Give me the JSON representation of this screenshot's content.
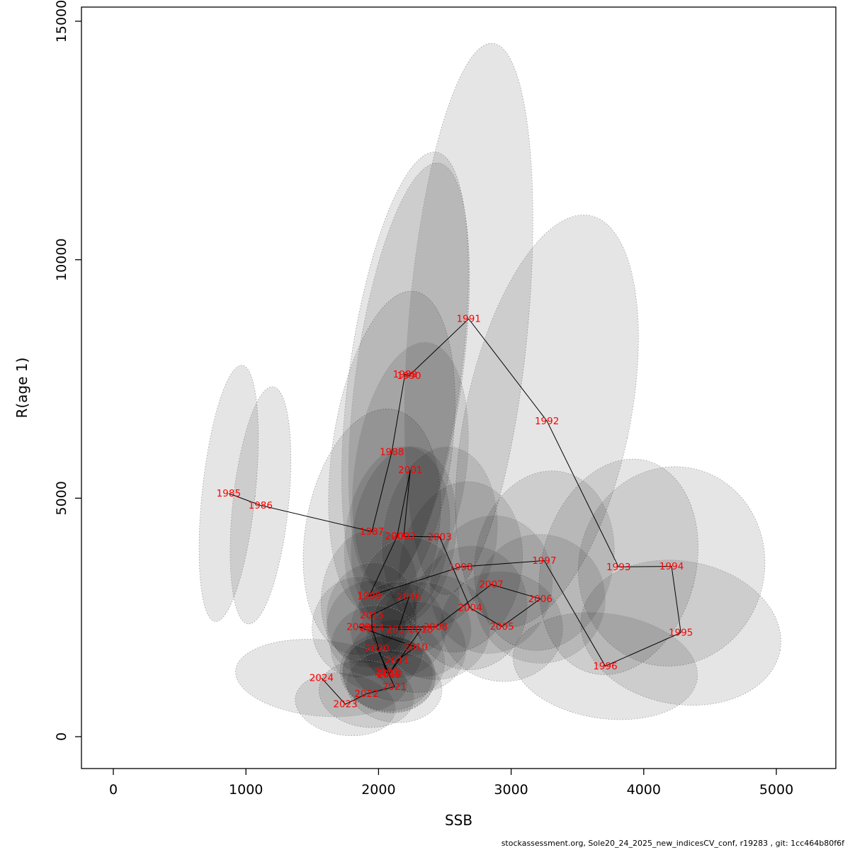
{
  "figure": {
    "background": "#FFFFFF"
  },
  "footer": {
    "text": "stockassessment.org, Sole20_24_2025_new_indicesCV_conf, r19283 , git: 1cc464b80f6f"
  },
  "chart_data": {
    "type": "scatter",
    "title": "",
    "xlabel": "SSB",
    "ylabel": "R(age 1)",
    "xlim": [
      0,
      5000
    ],
    "ylim": [
      0,
      15000
    ],
    "x_ticks": [
      0,
      1000,
      2000,
      3000,
      4000,
      5000
    ],
    "y_ticks": [
      0,
      5000,
      10000,
      15000
    ],
    "grid": false,
    "legend": false,
    "label_color": "#FF0000",
    "line_color": "#000000",
    "ellipse_fill": "#000000",
    "ellipse_fill_opacity": 0.1,
    "ellipse_stroke": "#909090",
    "series_description": "Stock-recruitment trajectory by year (red labels) joined by a line, each point surrounded by a grey confidence ellipse",
    "points": [
      {
        "year": 1985,
        "ssb": 870,
        "r": 5100,
        "ell_rx": 200,
        "ell_ry": 2700,
        "tilt": 6
      },
      {
        "year": 1986,
        "ssb": 1110,
        "r": 4850,
        "ell_rx": 210,
        "ell_ry": 2500,
        "tilt": 6
      },
      {
        "year": 1987,
        "ssb": 1950,
        "r": 4300,
        "ell_rx": 500,
        "ell_ry": 2600,
        "tilt": 10
      },
      {
        "year": 1988,
        "ssb": 2100,
        "r": 5970,
        "ell_rx": 450,
        "ell_ry": 3400,
        "tilt": 8
      },
      {
        "year": 1989,
        "ssb": 2200,
        "r": 7600,
        "ell_rx": 420,
        "ell_ry": 4700,
        "tilt": 8
      },
      {
        "year": 1990,
        "ssb": 2230,
        "r": 7570,
        "ell_rx": 400,
        "ell_ry": 4500,
        "tilt": 8
      },
      {
        "year": 1991,
        "ssb": 2680,
        "r": 8760,
        "ell_rx": 450,
        "ell_ry": 5800,
        "tilt": 5
      },
      {
        "year": 1992,
        "ssb": 3270,
        "r": 6620,
        "ell_rx": 620,
        "ell_ry": 4400,
        "tilt": 12
      },
      {
        "year": 1993,
        "ssb": 3810,
        "r": 3560,
        "ell_rx": 580,
        "ell_ry": 2300,
        "tilt": 15
      },
      {
        "year": 1994,
        "ssb": 4210,
        "r": 3570,
        "ell_rx": 700,
        "ell_ry": 2100,
        "tilt": 15
      },
      {
        "year": 1995,
        "ssb": 4280,
        "r": 2180,
        "ell_rx": 760,
        "ell_ry": 1500,
        "tilt": 10
      },
      {
        "year": 1996,
        "ssb": 3710,
        "r": 1480,
        "ell_rx": 700,
        "ell_ry": 1100,
        "tilt": 8
      },
      {
        "year": 1997,
        "ssb": 3250,
        "r": 3690,
        "ell_rx": 520,
        "ell_ry": 1900,
        "tilt": 12
      },
      {
        "year": 1998,
        "ssb": 2620,
        "r": 3560,
        "ell_rx": 460,
        "ell_ry": 1800,
        "tilt": 10
      },
      {
        "year": 1999,
        "ssb": 1930,
        "r": 2950,
        "ell_rx": 360,
        "ell_ry": 1400,
        "tilt": 8
      },
      {
        "year": 2000,
        "ssb": 2140,
        "r": 4200,
        "ell_rx": 390,
        "ell_ry": 1900,
        "tilt": 8
      },
      {
        "year": 2001,
        "ssb": 2240,
        "r": 5590,
        "ell_rx": 420,
        "ell_ry": 2700,
        "tilt": 8
      },
      {
        "year": 2002,
        "ssb": 2190,
        "r": 4200,
        "ell_rx": 390,
        "ell_ry": 1900,
        "tilt": 8
      },
      {
        "year": 2003,
        "ssb": 2460,
        "r": 4190,
        "ell_rx": 430,
        "ell_ry": 1900,
        "tilt": 8
      },
      {
        "year": 2004,
        "ssb": 2690,
        "r": 2700,
        "ell_rx": 430,
        "ell_ry": 1300,
        "tilt": 8
      },
      {
        "year": 2005,
        "ssb": 2930,
        "r": 2310,
        "ell_rx": 460,
        "ell_ry": 1150,
        "tilt": 8
      },
      {
        "year": 2006,
        "ssb": 3220,
        "r": 2890,
        "ell_rx": 490,
        "ell_ry": 1350,
        "tilt": 10
      },
      {
        "year": 2007,
        "ssb": 2850,
        "r": 3190,
        "ell_rx": 460,
        "ell_ry": 1450,
        "tilt": 10
      },
      {
        "year": 2008,
        "ssb": 2430,
        "r": 2300,
        "ell_rx": 410,
        "ell_ry": 1100,
        "tilt": 8
      },
      {
        "year": 2009,
        "ssb": 1850,
        "r": 2300,
        "ell_rx": 350,
        "ell_ry": 1050,
        "tilt": 8
      },
      {
        "year": 2010,
        "ssb": 2280,
        "r": 1880,
        "ell_rx": 380,
        "ell_ry": 950,
        "tilt": 8
      },
      {
        "year": 2011,
        "ssb": 2140,
        "r": 1600,
        "ell_rx": 360,
        "ell_ry": 850,
        "tilt": 8
      },
      {
        "year": 2012,
        "ssb": 2080,
        "r": 1300,
        "ell_rx": 350,
        "ell_ry": 800,
        "tilt": 8
      },
      {
        "year": 2013,
        "ssb": 2060,
        "r": 1350,
        "ell_rx": 350,
        "ell_ry": 800,
        "tilt": 8
      },
      {
        "year": 2014,
        "ssb": 1950,
        "r": 2280,
        "ell_rx": 340,
        "ell_ry": 1000,
        "tilt": 8
      },
      {
        "year": 2015,
        "ssb": 1950,
        "r": 2550,
        "ell_rx": 340,
        "ell_ry": 1100,
        "tilt": 8
      },
      {
        "year": 2016,
        "ssb": 2230,
        "r": 2930,
        "ell_rx": 380,
        "ell_ry": 1250,
        "tilt": 8
      },
      {
        "year": 2017,
        "ssb": 2150,
        "r": 2250,
        "ell_rx": 360,
        "ell_ry": 1000,
        "tilt": 8
      },
      {
        "year": 2018,
        "ssb": 2320,
        "r": 2250,
        "ell_rx": 380,
        "ell_ry": 1000,
        "tilt": 8
      },
      {
        "year": 2019,
        "ssb": 2080,
        "r": 1320,
        "ell_rx": 350,
        "ell_ry": 800,
        "tilt": 8
      },
      {
        "year": 2020,
        "ssb": 1990,
        "r": 1850,
        "ell_rx": 350,
        "ell_ry": 900,
        "tilt": 8
      },
      {
        "year": 2021,
        "ssb": 2120,
        "r": 1050,
        "ell_rx": 360,
        "ell_ry": 750,
        "tilt": 8
      },
      {
        "year": 2022,
        "ssb": 1910,
        "r": 900,
        "ell_rx": 360,
        "ell_ry": 700,
        "tilt": 8
      },
      {
        "year": 2023,
        "ssb": 1750,
        "r": 680,
        "ell_rx": 380,
        "ell_ry": 650,
        "tilt": 8
      },
      {
        "year": 2024,
        "ssb": 1570,
        "r": 1230,
        "ell_rx": 650,
        "ell_ry": 800,
        "tilt": 5
      }
    ]
  }
}
